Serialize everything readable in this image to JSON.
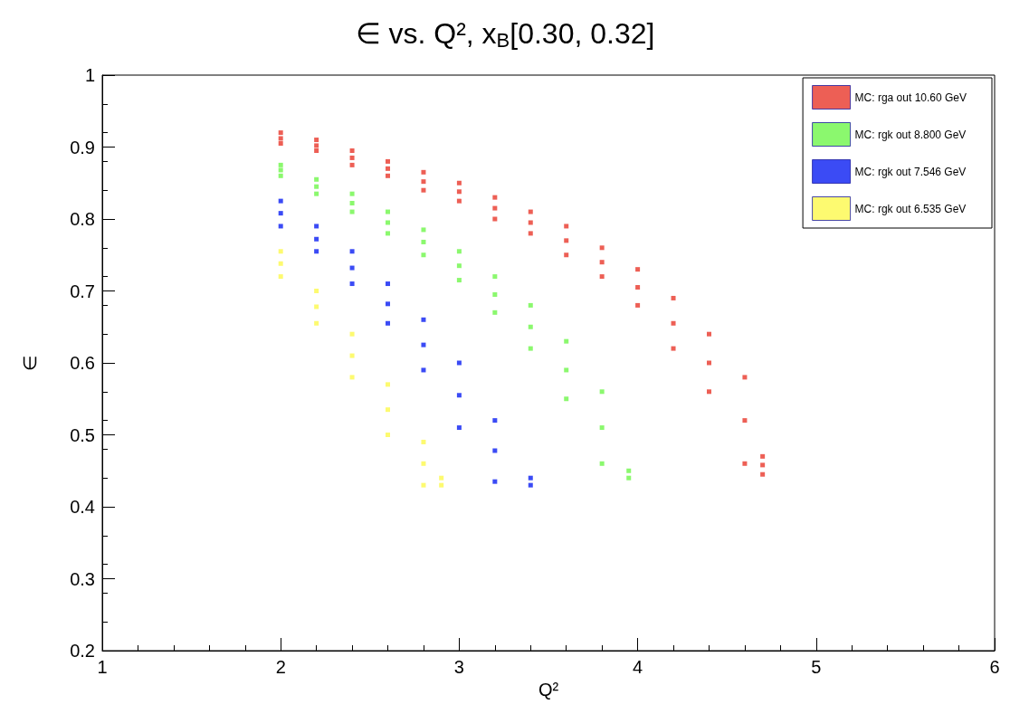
{
  "chart_data": {
    "type": "scatter",
    "title": "∈ vs. Q², x$_{B}$[0.30, 0.32]",
    "xlabel": "Q²",
    "ylabel": "∈",
    "xlim": [
      1,
      6
    ],
    "xticks": [
      1,
      2,
      3,
      4,
      5,
      6
    ],
    "ylim": [
      0.2,
      1
    ],
    "yticks": [
      0.2,
      0.3,
      0.4,
      0.5,
      0.6,
      0.7,
      0.8,
      0.9,
      1
    ],
    "grid": false,
    "legend": "top right",
    "marker": "square",
    "series": [
      {
        "name": "MC: rga out 10.60 GeV",
        "color": "#e8372a",
        "x": [
          2.0,
          2.0,
          2.0,
          2.2,
          2.2,
          2.2,
          2.4,
          2.4,
          2.4,
          2.6,
          2.6,
          2.6,
          2.8,
          2.8,
          2.8,
          3.0,
          3.0,
          3.0,
          3.2,
          3.2,
          3.2,
          3.4,
          3.4,
          3.4,
          3.6,
          3.6,
          3.6,
          3.8,
          3.8,
          3.8,
          4.0,
          4.0,
          4.0,
          4.2,
          4.2,
          4.2,
          4.4,
          4.4,
          4.4,
          4.6,
          4.6,
          4.6,
          4.7,
          4.7,
          4.7
        ],
        "values": [
          0.92,
          0.912,
          0.905,
          0.91,
          0.902,
          0.895,
          0.895,
          0.885,
          0.875,
          0.88,
          0.87,
          0.86,
          0.865,
          0.852,
          0.84,
          0.85,
          0.838,
          0.825,
          0.83,
          0.815,
          0.8,
          0.81,
          0.795,
          0.78,
          0.79,
          0.77,
          0.75,
          0.76,
          0.74,
          0.72,
          0.73,
          0.705,
          0.68,
          0.69,
          0.655,
          0.62,
          0.64,
          0.6,
          0.56,
          0.58,
          0.52,
          0.46,
          0.47,
          0.458,
          0.445
        ]
      },
      {
        "name": "MC: rgk out 8.800 GeV",
        "color": "#6ef64a",
        "x": [
          2.0,
          2.0,
          2.0,
          2.2,
          2.2,
          2.2,
          2.4,
          2.4,
          2.4,
          2.6,
          2.6,
          2.6,
          2.8,
          2.8,
          2.8,
          3.0,
          3.0,
          3.0,
          3.2,
          3.2,
          3.2,
          3.4,
          3.4,
          3.4,
          3.6,
          3.6,
          3.6,
          3.8,
          3.8,
          3.8,
          3.95,
          3.95
        ],
        "values": [
          0.875,
          0.868,
          0.86,
          0.855,
          0.845,
          0.835,
          0.835,
          0.822,
          0.81,
          0.81,
          0.795,
          0.78,
          0.785,
          0.768,
          0.75,
          0.755,
          0.735,
          0.715,
          0.72,
          0.695,
          0.67,
          0.68,
          0.65,
          0.62,
          0.63,
          0.59,
          0.55,
          0.56,
          0.51,
          0.46,
          0.45,
          0.44
        ]
      },
      {
        "name": "MC: rgk out 7.546 GeV",
        "color": "#0a1ef2",
        "x": [
          2.0,
          2.0,
          2.0,
          2.2,
          2.2,
          2.2,
          2.4,
          2.4,
          2.4,
          2.6,
          2.6,
          2.6,
          2.8,
          2.8,
          2.8,
          3.0,
          3.0,
          3.0,
          3.2,
          3.2,
          3.2,
          3.4,
          3.4
        ],
        "values": [
          0.825,
          0.808,
          0.79,
          0.79,
          0.772,
          0.755,
          0.755,
          0.732,
          0.71,
          0.71,
          0.682,
          0.655,
          0.66,
          0.625,
          0.59,
          0.6,
          0.555,
          0.51,
          0.52,
          0.478,
          0.435,
          0.44,
          0.43
        ]
      },
      {
        "name": "MC: rgk out 6.535 GeV",
        "color": "#fdf94c",
        "x": [
          2.0,
          2.0,
          2.0,
          2.2,
          2.2,
          2.2,
          2.4,
          2.4,
          2.4,
          2.6,
          2.6,
          2.6,
          2.8,
          2.8,
          2.8,
          2.9,
          2.9
        ],
        "values": [
          0.755,
          0.738,
          0.72,
          0.7,
          0.678,
          0.655,
          0.64,
          0.61,
          0.58,
          0.57,
          0.535,
          0.5,
          0.49,
          0.46,
          0.43,
          0.44,
          0.43
        ]
      }
    ]
  }
}
